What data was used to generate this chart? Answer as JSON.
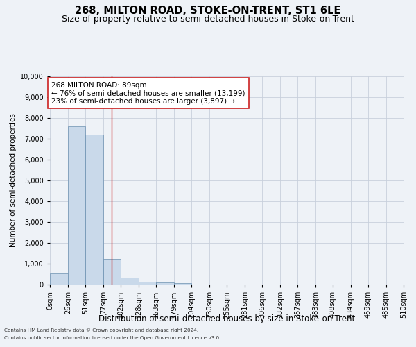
{
  "title": "268, MILTON ROAD, STOKE-ON-TRENT, ST1 6LE",
  "subtitle": "Size of property relative to semi-detached houses in Stoke-on-Trent",
  "xlabel": "Distribution of semi-detached houses by size in Stoke-on-Trent",
  "ylabel": "Number of semi-detached properties",
  "footnote1": "Contains HM Land Registry data © Crown copyright and database right 2024.",
  "footnote2": "Contains public sector information licensed under the Open Government Licence v3.0.",
  "property_label": "268 MILTON ROAD: 89sqm",
  "annotation_line1": "← 76% of semi-detached houses are smaller (13,199)",
  "annotation_line2": "23% of semi-detached houses are larger (3,897) →",
  "bar_edges": [
    0,
    26,
    51,
    77,
    102,
    128,
    153,
    179,
    204,
    230,
    255,
    281,
    306,
    332,
    357,
    383,
    408,
    434,
    459,
    485,
    510
  ],
  "bar_heights": [
    530,
    7600,
    7200,
    1250,
    350,
    150,
    100,
    60,
    0,
    0,
    0,
    0,
    0,
    0,
    0,
    0,
    0,
    0,
    0,
    0
  ],
  "bar_color": "#c9d9ea",
  "bar_edge_color": "#6a8faf",
  "grid_color": "#c8d0dc",
  "background_color": "#eef2f7",
  "vline_color": "#cc2222",
  "vline_x": 89,
  "annotation_box_color": "#ffffff",
  "annotation_box_edge": "#cc2222",
  "ylim": [
    0,
    10000
  ],
  "yticks": [
    0,
    1000,
    2000,
    3000,
    4000,
    5000,
    6000,
    7000,
    8000,
    9000,
    10000
  ],
  "title_fontsize": 10.5,
  "subtitle_fontsize": 9,
  "tick_label_fontsize": 7,
  "xlabel_fontsize": 8.5,
  "ylabel_fontsize": 7.5,
  "annotation_fontsize": 7.5
}
